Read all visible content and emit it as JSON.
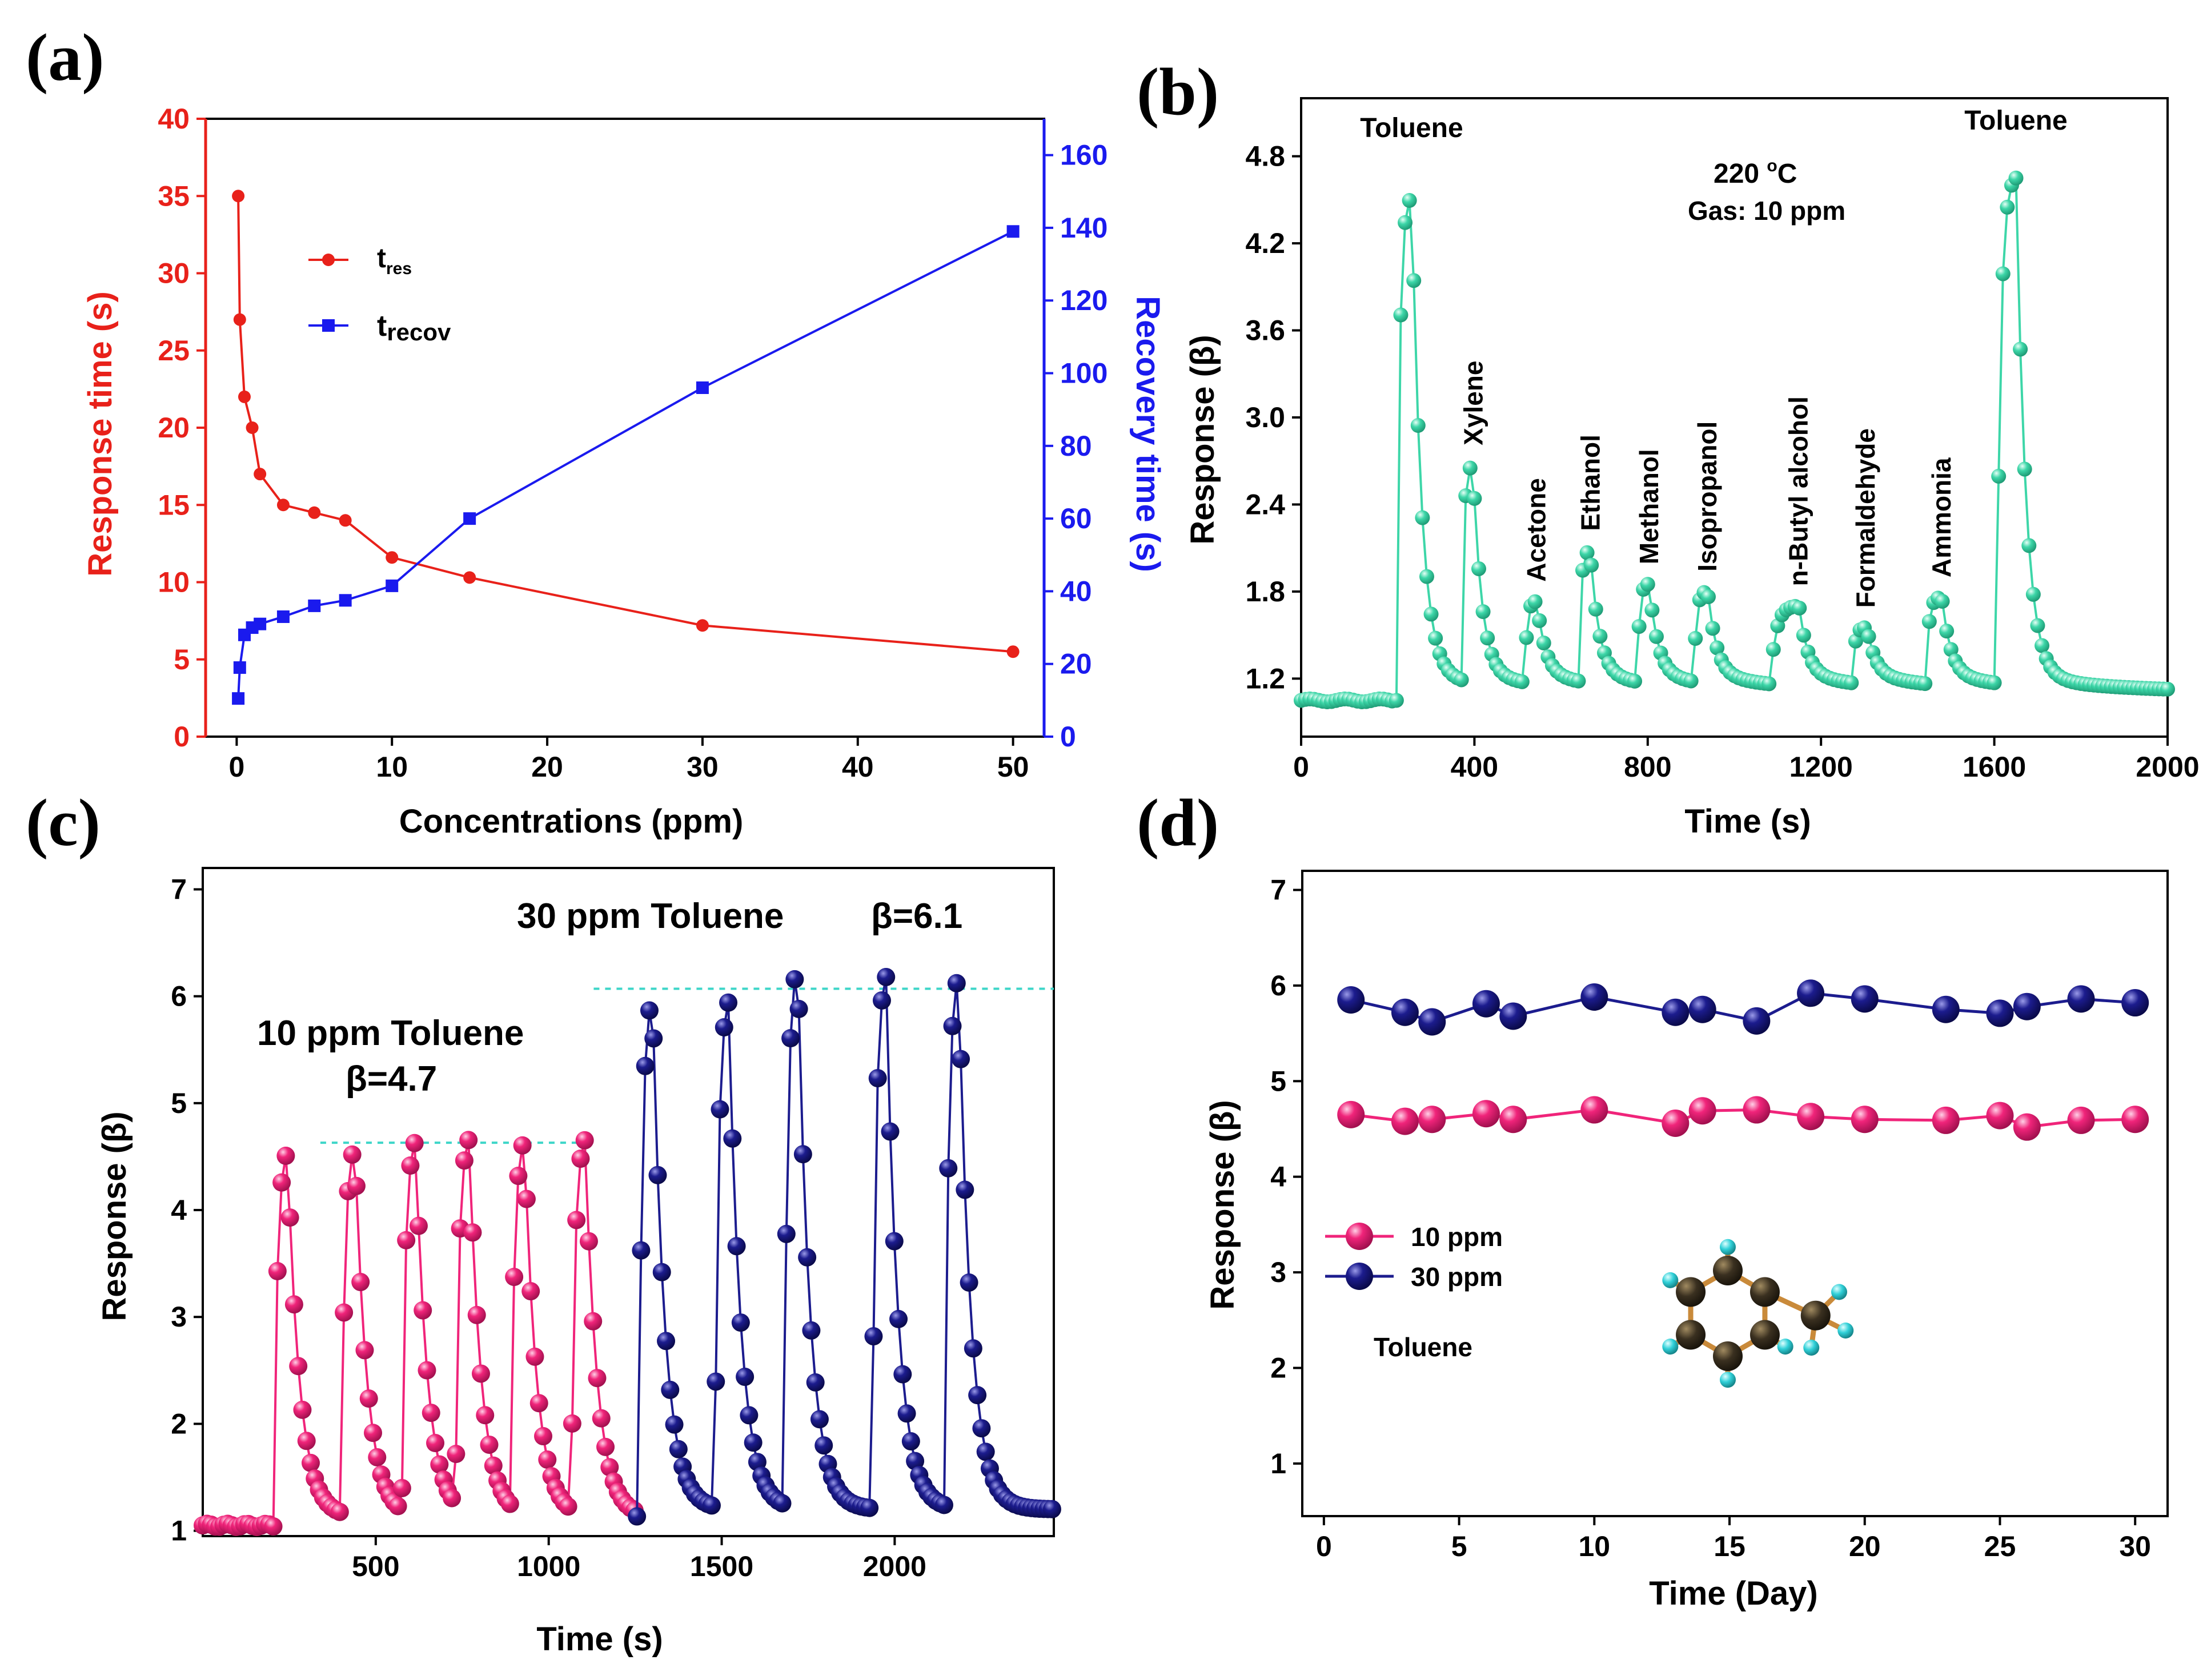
{
  "panels": {
    "a": "(a)",
    "b": "(b)",
    "c": "(c)",
    "d": "(d)"
  },
  "chart_data": [
    {
      "panel": "(a)",
      "type": "line",
      "xlabel": "Concentrations (ppm)",
      "ylabel": "Response time (s)",
      "y2label": "Recovery time (s)",
      "xlim": [
        -2,
        52
      ],
      "ylim": [
        0,
        40
      ],
      "y2lim": [
        0,
        170
      ],
      "xticks": [
        0,
        10,
        20,
        30,
        40,
        50
      ],
      "yticks": [
        0,
        5,
        10,
        15,
        20,
        25,
        30,
        35,
        40
      ],
      "y2ticks": [
        0,
        20,
        40,
        60,
        80,
        100,
        120,
        140,
        160
      ],
      "series": [
        {
          "name": "t",
          "sub": "res",
          "axis": "left",
          "color": "#e8211a",
          "marker": "circle",
          "x": [
            0.1,
            0.2,
            0.5,
            1,
            1.5,
            3,
            5,
            7,
            10,
            15,
            30,
            50
          ],
          "y": [
            35,
            27,
            22,
            20,
            17,
            15,
            14.5,
            14,
            11.6,
            10.3,
            7.2,
            5.5
          ]
        },
        {
          "name": "t",
          "sub": "recov",
          "axis": "right",
          "color": "#1a1aee",
          "marker": "square",
          "x": [
            0.1,
            0.2,
            0.5,
            1,
            1.5,
            3,
            5,
            7,
            10,
            15,
            30,
            50
          ],
          "y": [
            10.5,
            19,
            28,
            30,
            31,
            33,
            36,
            37.5,
            41.5,
            60,
            96,
            139
          ]
        }
      ]
    },
    {
      "panel": "(b)",
      "type": "line",
      "xlabel": "Time (s)",
      "ylabel": "Response (β)",
      "xlim": [
        0,
        2000
      ],
      "ylim": [
        0.8,
        5.2
      ],
      "xticks": [
        0,
        400,
        800,
        1200,
        1600,
        2000
      ],
      "yticks": [
        1.2,
        1.8,
        2.4,
        3.0,
        3.6,
        4.2,
        4.8
      ],
      "color": "#3dd6a8",
      "baseline": 1.05,
      "peaks": [
        {
          "gas": "Toluene",
          "start": 220,
          "peak_time": 255,
          "peak": 4.52
        },
        {
          "gas": "Xylene",
          "start": 370,
          "peak_time": 395,
          "peak": 2.67
        },
        {
          "gas": "Acetone",
          "start": 515,
          "peak_time": 540,
          "peak": 1.73
        },
        {
          "gas": "Ethanol",
          "start": 640,
          "peak_time": 665,
          "peak": 2.08
        },
        {
          "gas": "Methanol",
          "start": 775,
          "peak_time": 800,
          "peak": 1.85
        },
        {
          "gas": "Isopropanol",
          "start": 905,
          "peak_time": 935,
          "peak": 1.8
        },
        {
          "gas": "n-Butyl alcohol",
          "start": 1080,
          "peak_time": 1145,
          "peak": 1.7
        },
        {
          "gas": "Formaldehyde",
          "start": 1270,
          "peak_time": 1300,
          "peak": 1.55
        },
        {
          "gas": "Ammonia",
          "start": 1440,
          "peak_time": 1475,
          "peak": 1.76
        },
        {
          "gas": "Toluene",
          "start": 1605,
          "peak_time": 1650,
          "peak": 4.65
        }
      ],
      "annotation_temp_value": "220 ",
      "annotation_temp_unit": "o",
      "annotation_temp_c": "C",
      "annotation_gas": "Gas: 10 ppm"
    },
    {
      "panel": "(c)",
      "type": "line",
      "xlabel": "Time (s)",
      "ylabel": "Response (β)",
      "xlim": [
        0,
        2460
      ],
      "ylim": [
        0.95,
        7.2
      ],
      "xticks": [
        500,
        1000,
        1500,
        2000
      ],
      "yticks": [
        1,
        2,
        3,
        4,
        5,
        6,
        7
      ],
      "series": [
        {
          "name": "10 ppm Toluene",
          "color": "#f0247a",
          "baseline": 1.05,
          "cycles": [
            {
              "start": 205,
              "peak": 4.55,
              "end": 430
            },
            {
              "start": 400,
              "peak": 4.6,
              "end": 590
            },
            {
              "start": 575,
              "peak": 4.65,
              "end": 750
            },
            {
              "start": 730,
              "peak": 4.67,
              "end": 910
            },
            {
              "start": 890,
              "peak": 4.66,
              "end": 1080
            },
            {
              "start": 1065,
              "peak": 4.66,
              "end": 1250
            }
          ]
        },
        {
          "name": "30 ppm Toluene",
          "color": "#1c1c8e",
          "baseline": 1.12,
          "cycles": [
            {
              "start": 1260,
              "peak": 6.0,
              "end": 1490
            },
            {
              "start": 1480,
              "peak": 5.95,
              "end": 1690
            },
            {
              "start": 1680,
              "peak": 6.3,
              "end": 1930
            },
            {
              "start": 1935,
              "peak": 6.18,
              "end": 2150
            },
            {
              "start": 2145,
              "peak": 6.2,
              "end": 2460
            }
          ]
        }
      ],
      "reference_lines": [
        4.63,
        6.07
      ],
      "label_10": "10 ppm Toluene",
      "beta_10": "β=4.7",
      "label_30": "30 ppm Toluene",
      "beta_30": "β=6.1"
    },
    {
      "panel": "(d)",
      "type": "line",
      "xlabel": "Time (Day)",
      "ylabel": "Response (β)",
      "xlim": [
        -0.8,
        31.2
      ],
      "ylim": [
        0.45,
        7.2
      ],
      "xticks": [
        0,
        5,
        10,
        15,
        20,
        25,
        30
      ],
      "yticks": [
        1,
        2,
        3,
        4,
        5,
        6,
        7
      ],
      "series": [
        {
          "name": "10 ppm",
          "color": "#f0247a",
          "x": [
            1,
            3,
            4,
            6,
            7,
            10,
            13,
            14,
            16,
            18,
            20,
            23,
            25,
            26,
            28,
            30
          ],
          "y": [
            4.65,
            4.58,
            4.6,
            4.66,
            4.6,
            4.7,
            4.56,
            4.69,
            4.7,
            4.63,
            4.6,
            4.59,
            4.64,
            4.52,
            4.59,
            4.6
          ]
        },
        {
          "name": "30 ppm",
          "color": "#1c1c8e",
          "x": [
            1,
            3,
            4,
            6,
            7,
            10,
            13,
            14,
            16,
            18,
            20,
            23,
            25,
            26,
            28,
            30
          ],
          "y": [
            5.85,
            5.72,
            5.62,
            5.81,
            5.68,
            5.88,
            5.72,
            5.75,
            5.63,
            5.92,
            5.86,
            5.75,
            5.71,
            5.78,
            5.86,
            5.82
          ]
        }
      ],
      "molecule_label": "Toluene"
    }
  ]
}
